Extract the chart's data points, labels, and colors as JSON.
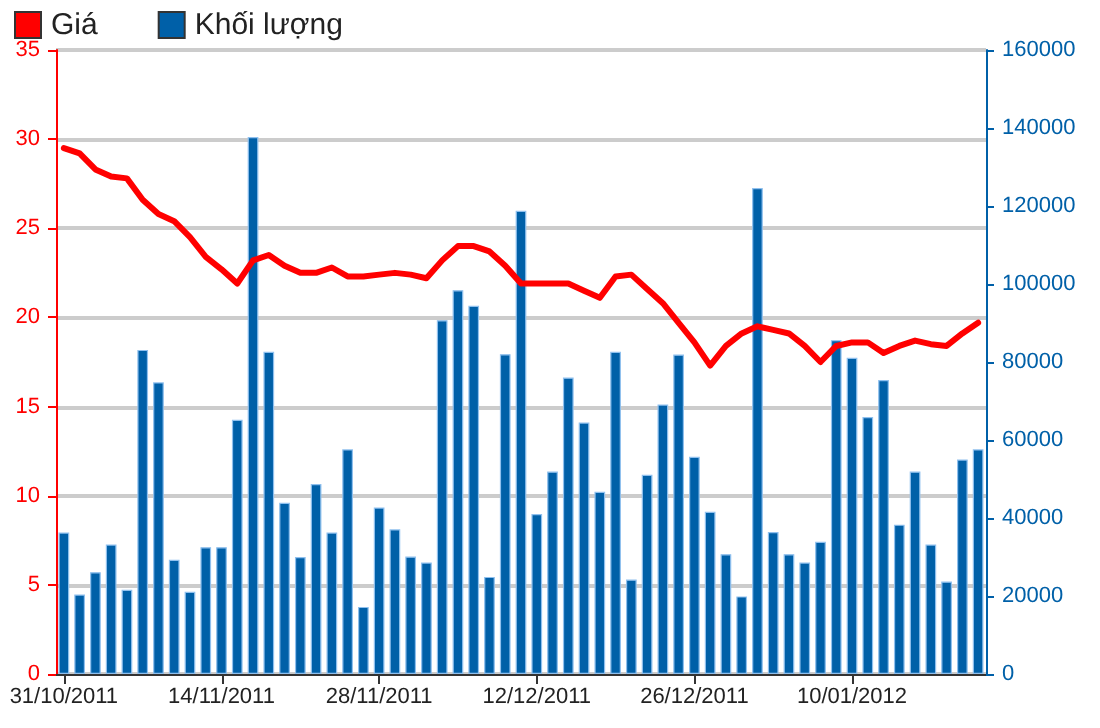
{
  "chart_data": {
    "type": "line",
    "categories": [
      "31/10/2011",
      null,
      null,
      null,
      null,
      null,
      null,
      null,
      null,
      null,
      "14/11/2011",
      null,
      null,
      null,
      null,
      null,
      null,
      null,
      null,
      null,
      "28/11/2011",
      null,
      null,
      null,
      null,
      null,
      null,
      null,
      null,
      null,
      "12/12/2011",
      null,
      null,
      null,
      null,
      null,
      null,
      null,
      null,
      null,
      "26/12/2011",
      null,
      null,
      null,
      null,
      null,
      null,
      null,
      null,
      null,
      "10/01/2012",
      null,
      null,
      null,
      null,
      null,
      null,
      null,
      null
    ],
    "series": [
      {
        "name": "Giá",
        "color": "#ff0000",
        "values": [
          29.5,
          29.2,
          28.3,
          27.9,
          27.8,
          26.6,
          25.8,
          25.4,
          24.5,
          23.4,
          22.7,
          21.9,
          23.2,
          23.5,
          22.9,
          22.5,
          22.5,
          22.8,
          22.3,
          22.3,
          22.4,
          22.5,
          22.4,
          22.2,
          23.2,
          24.0,
          24.0,
          23.7,
          22.9,
          21.9,
          21.9,
          21.9,
          21.9,
          21.5,
          21.1,
          22.3,
          22.4,
          21.6,
          20.8,
          19.7,
          18.6,
          17.3,
          18.4,
          19.1,
          19.5,
          19.3,
          19.1,
          18.4,
          17.5,
          18.4,
          18.6,
          18.6,
          18.0,
          18.4,
          18.7,
          18.5,
          18.4,
          19.1,
          19.7
        ]
      },
      {
        "name": "Khối lượng",
        "type": "bar",
        "axis": "y2",
        "color": "#0060a8",
        "values": [
          36300,
          20400,
          26100,
          33200,
          21600,
          83100,
          74800,
          29300,
          21100,
          32500,
          32500,
          65200,
          137700,
          82600,
          43900,
          30000,
          48700,
          36300,
          57600,
          17200,
          42700,
          37100,
          30100,
          28600,
          90700,
          98400,
          94400,
          24900,
          82000,
          118800,
          41000,
          51900,
          76000,
          64500,
          46700,
          82600,
          24200,
          51100,
          69100,
          81900,
          55700,
          41600,
          30700,
          19900,
          124600,
          36400,
          30700,
          28600,
          33900,
          85600,
          81100,
          65900,
          75400,
          38300,
          51900,
          33200,
          23700,
          55000,
          57600
        ]
      }
    ],
    "ylim": [
      0,
      35
    ],
    "yticks": [
      0,
      5,
      10,
      15,
      20,
      25,
      30,
      35
    ],
    "y2lim": [
      0,
      160000
    ],
    "y2ticks": [
      0,
      20000,
      40000,
      60000,
      80000,
      100000,
      120000,
      140000,
      160000
    ],
    "grid": "y",
    "legend": "top left"
  }
}
